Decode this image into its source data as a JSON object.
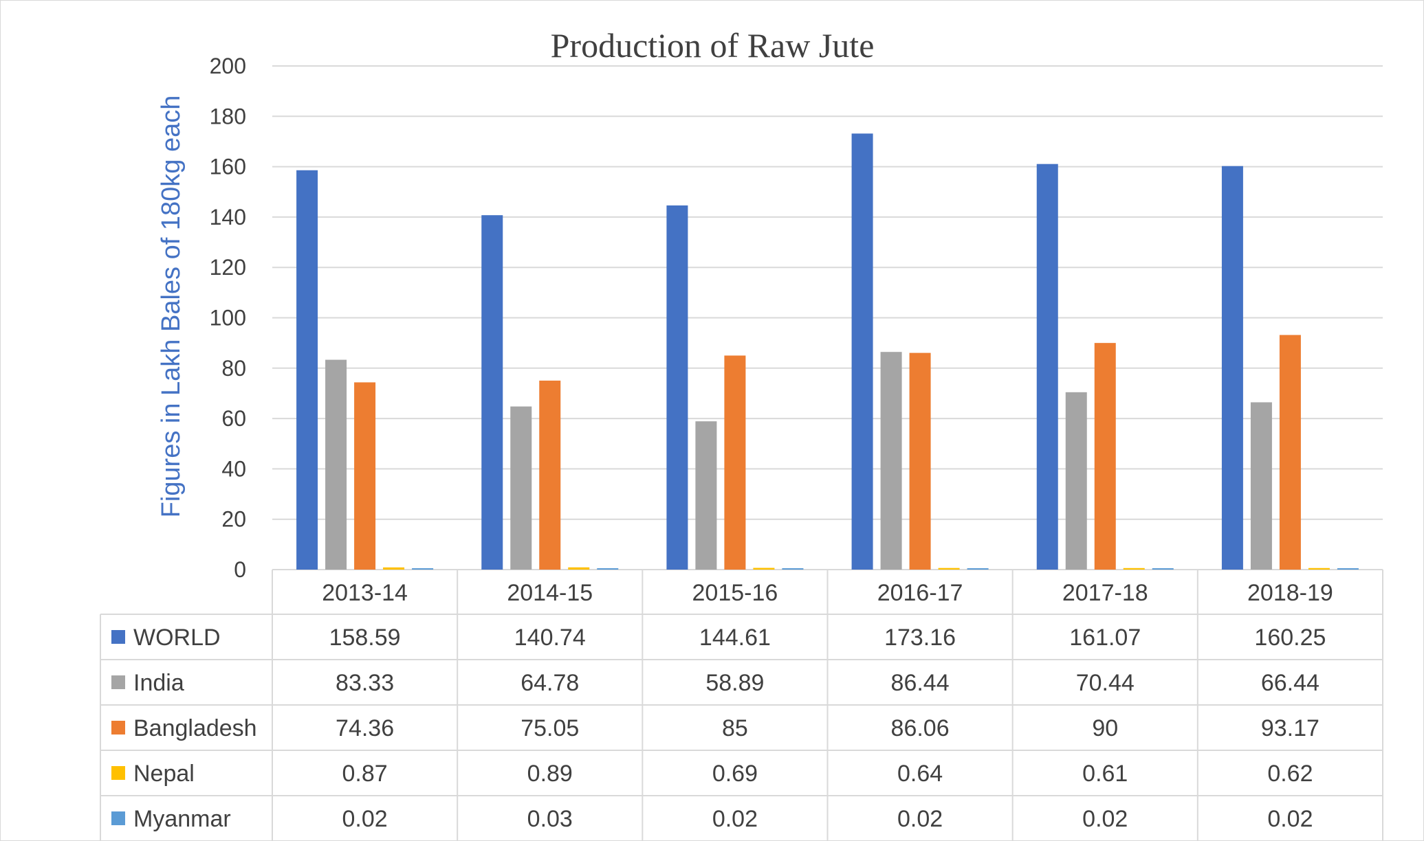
{
  "chart_data": {
    "type": "bar",
    "title": "Production of Raw Jute",
    "ylabel": "Figures in Lakh Bales of 180kg each",
    "xlabel": "",
    "ylim": [
      0,
      200
    ],
    "yticks": [
      0,
      20,
      40,
      60,
      80,
      100,
      120,
      140,
      160,
      180,
      200
    ],
    "grid": true,
    "legend": "data-table",
    "categories": [
      "2013-14",
      "2014-15",
      "2015-16",
      "2016-17",
      "2017-18",
      "2018-19"
    ],
    "series": [
      {
        "name": "WORLD",
        "color": "#4472c4",
        "values": [
          158.59,
          140.74,
          144.61,
          173.16,
          161.07,
          160.25
        ]
      },
      {
        "name": "India",
        "color": "#a5a5a5",
        "values": [
          83.33,
          64.78,
          58.89,
          86.44,
          70.44,
          66.44
        ]
      },
      {
        "name": "Bangladesh",
        "color": "#ed7d31",
        "values": [
          74.36,
          75.05,
          85,
          86.06,
          90,
          93.17
        ]
      },
      {
        "name": "Nepal",
        "color": "#ffc000",
        "values": [
          0.87,
          0.89,
          0.69,
          0.64,
          0.61,
          0.62
        ]
      },
      {
        "name": "Myanmar",
        "color": "#5b9bd5",
        "values": [
          0.02,
          0.03,
          0.02,
          0.02,
          0.02,
          0.02
        ]
      }
    ]
  }
}
